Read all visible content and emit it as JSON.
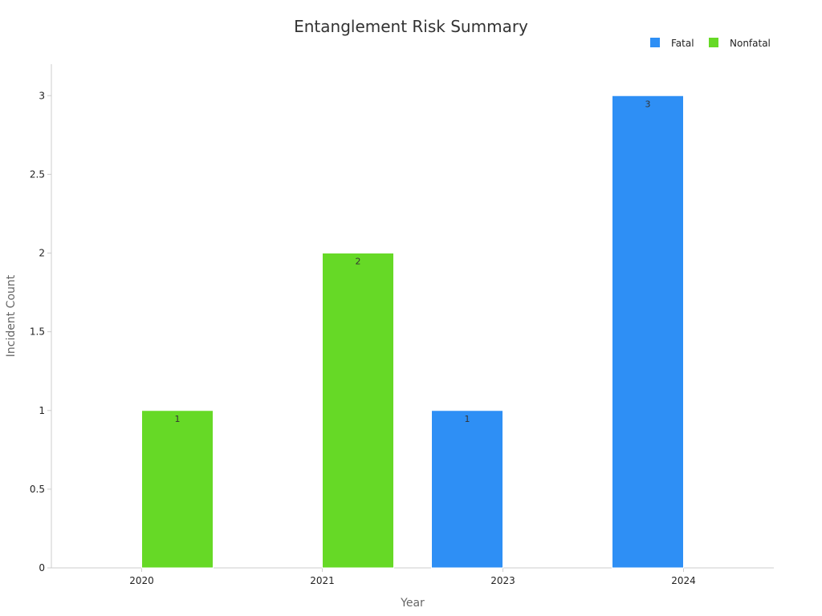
{
  "chart_data": {
    "type": "bar",
    "title": "Entanglement Risk Summary",
    "xlabel": "Year",
    "ylabel": "Incident Count",
    "categories": [
      "2020",
      "2021",
      "2023",
      "2024"
    ],
    "ylim": [
      0,
      3.2
    ],
    "yticks": [
      0,
      0.5,
      1,
      1.5,
      2,
      2.5,
      3
    ],
    "ytick_labels": [
      "0",
      "0.5",
      "1",
      "1.5",
      "2",
      "2.5",
      "3"
    ],
    "legend_position": "top-right",
    "series": [
      {
        "name": "Fatal",
        "color": "#2e8ff5",
        "values": [
          0,
          0,
          1,
          3
        ]
      },
      {
        "name": "Nonfatal",
        "color": "#66d926",
        "values": [
          1,
          2,
          0,
          0
        ]
      }
    ]
  }
}
